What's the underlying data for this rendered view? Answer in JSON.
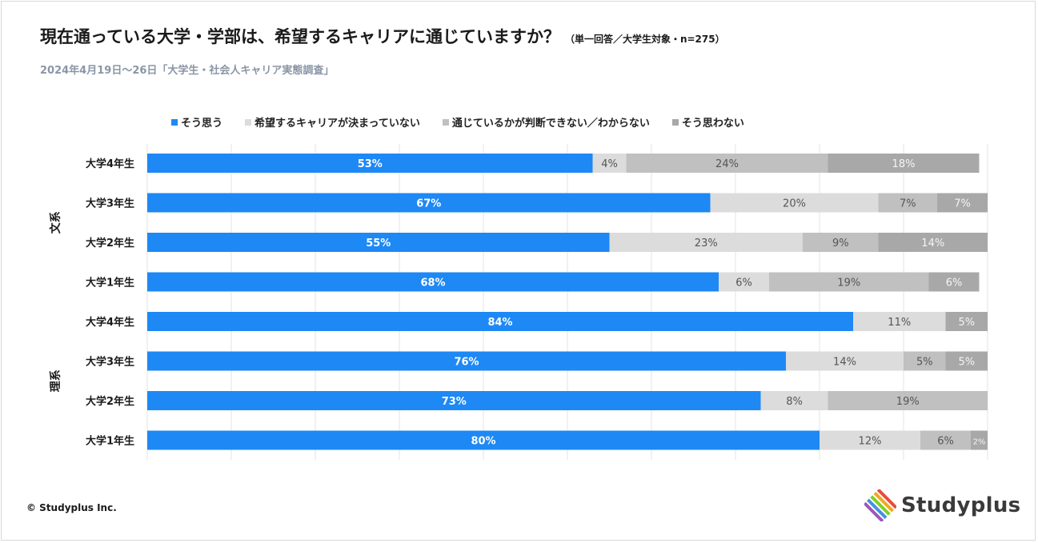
{
  "title": "現在通っている大学・学部は、希望するキャリアに通じていますか？",
  "title_note": "（単一回答／大学生対象・n=275）",
  "subtitle": "2024年4月19日〜26日「大学生・社会人キャリア実態調査」",
  "copyright": "© Studyplus Inc.",
  "logo_text": "Studyplus",
  "chart_data": {
    "type": "bar",
    "orientation": "horizontal",
    "stacked": true,
    "xlim": [
      0,
      100
    ],
    "grid": true,
    "legend_position": "top",
    "series": [
      {
        "name": "そう思う",
        "color": "#1e88f5",
        "label_color": "#ffffff"
      },
      {
        "name": "希望するキャリアが決まっていない",
        "color": "#dcdcdc",
        "label_color": "#555555"
      },
      {
        "name": "通じているかが判断できない／わからない",
        "color": "#c0c0c0",
        "label_color": "#555555"
      },
      {
        "name": "そう思わない",
        "color": "#a8a8a8",
        "label_color": "#f5f5f5"
      }
    ],
    "groups": [
      {
        "label": "文系",
        "rows": [
          {
            "label": "大学4年生",
            "values": [
              53,
              4,
              24,
              18
            ],
            "labels": [
              "53%",
              "4%",
              "24%",
              "18%"
            ]
          },
          {
            "label": "大学3年生",
            "values": [
              67,
              20,
              7,
              7
            ],
            "labels": [
              "67%",
              "20%",
              "7%",
              "7%"
            ]
          },
          {
            "label": "大学2年生",
            "values": [
              55,
              23,
              9,
              14
            ],
            "labels": [
              "55%",
              "23%",
              "9%",
              "14%"
            ]
          },
          {
            "label": "大学1年生",
            "values": [
              68,
              6,
              19,
              6
            ],
            "labels": [
              "68%",
              "6%",
              "19%",
              "6%"
            ]
          }
        ]
      },
      {
        "label": "理系",
        "rows": [
          {
            "label": "大学4年生",
            "values": [
              84,
              11,
              0,
              5
            ],
            "labels": [
              "84%",
              "11%",
              "",
              "5%"
            ]
          },
          {
            "label": "大学3年生",
            "values": [
              76,
              14,
              5,
              5
            ],
            "labels": [
              "76%",
              "14%",
              "5%",
              "5%"
            ]
          },
          {
            "label": "大学2年生",
            "values": [
              73,
              8,
              19,
              0
            ],
            "labels": [
              "73%",
              "8%",
              "19%",
              ""
            ]
          },
          {
            "label": "大学1年生",
            "values": [
              80,
              12,
              6,
              2
            ],
            "labels": [
              "80%",
              "12%",
              "6%",
              "2%"
            ]
          }
        ]
      }
    ]
  }
}
